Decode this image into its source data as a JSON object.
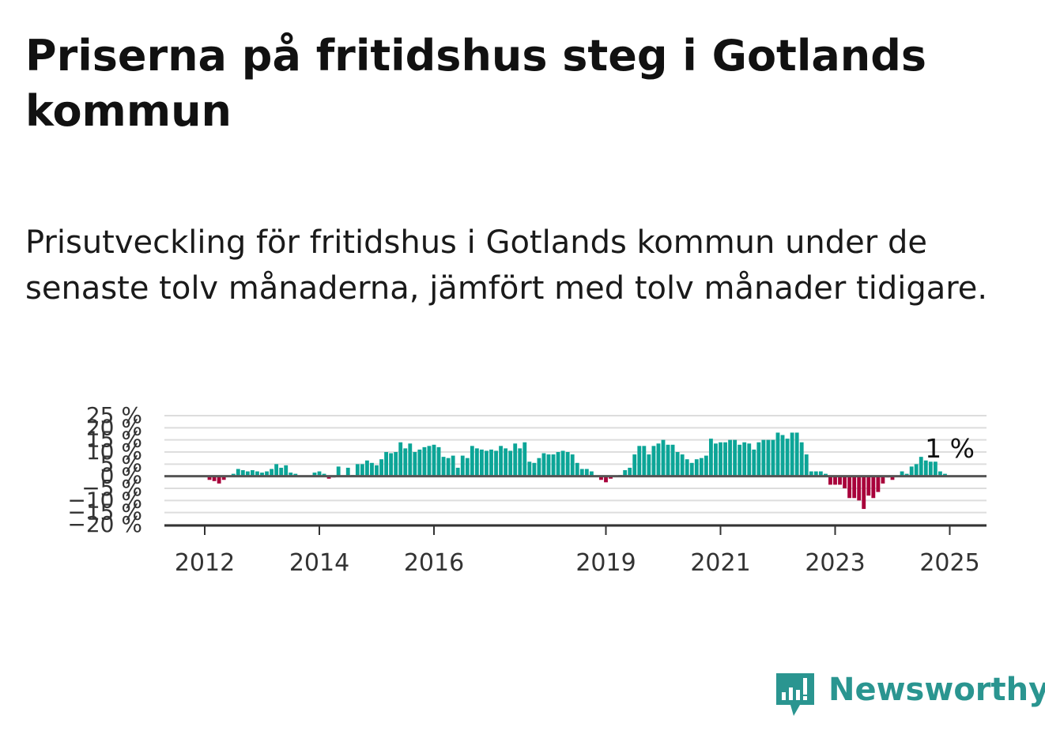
{
  "title": "Priserna på fritidshus steg i Gotlands kommun",
  "subtitle": "Prisutveckling för fritidshus i Gotlands kommun under de senaste tolv månaderna, jämfört med tolv månader tidigare.",
  "brand": {
    "name": "Newsworthy",
    "color": "#2a9590"
  },
  "chart_data": {
    "type": "bar",
    "title": "",
    "xlabel": "",
    "ylabel": "",
    "ylim": [
      -20,
      25
    ],
    "y_ticks": [
      -20,
      -15,
      -10,
      -5,
      0,
      5,
      10,
      15,
      20,
      25
    ],
    "y_tick_labels": [
      "−20 %",
      "−15 %",
      "−10 %",
      "−5 %",
      "0 %",
      "5 %",
      "10 %",
      "15 %",
      "20 %",
      "25 %"
    ],
    "x_ticks": [
      2012,
      2014,
      2016,
      2019,
      2021,
      2023,
      2025
    ],
    "x_tick_labels": [
      "2012",
      "2014",
      "2016",
      "2019",
      "2021",
      "2023",
      "2025"
    ],
    "grid": true,
    "colors": {
      "positive": "#0ca597",
      "negative": "#a8003a",
      "grid": "#dddddd",
      "zero_line": "#555555"
    },
    "annotation": {
      "text": "1 %",
      "x": "2025-01"
    },
    "series": [
      {
        "x_start": "2012-01",
        "frequency": "monthly",
        "values": [
          0,
          -1.5,
          -2,
          -3,
          -1.5,
          0,
          1,
          3,
          2.5,
          2,
          2.5,
          2,
          1.5,
          2,
          3,
          5,
          3.5,
          4.5,
          1.5,
          1,
          0,
          0,
          0,
          1.5,
          2,
          1,
          -1,
          -0.5,
          4,
          0,
          3.5,
          0.5,
          5,
          5,
          6.5,
          5.5,
          4.5,
          7,
          10,
          9.5,
          10,
          14,
          11.5,
          13.5,
          10,
          11,
          12,
          12.5,
          13,
          12,
          8,
          7.5,
          8.5,
          3.5,
          8.5,
          7.5,
          12.5,
          11.5,
          11,
          10.5,
          11,
          10.5,
          12.5,
          11.5,
          10.5,
          13.5,
          11.5,
          14,
          6,
          5.5,
          7.5,
          9.5,
          9,
          9,
          10,
          10.5,
          10,
          9,
          5.5,
          3,
          3,
          2,
          0,
          -1.5,
          -2.5,
          -1,
          0,
          0.5,
          2.5,
          3.5,
          9,
          12.5,
          12.5,
          9,
          12.5,
          13.5,
          15,
          13,
          13,
          10,
          9,
          7,
          5.5,
          7,
          7.5,
          8.5,
          15.5,
          13.5,
          14,
          14,
          15,
          15,
          13,
          14,
          13.5,
          11,
          14,
          15,
          15,
          15,
          18,
          17,
          15.5,
          18,
          18,
          14,
          9,
          2,
          2,
          2,
          1,
          -3.5,
          -3.5,
          -3.5,
          -5,
          -9,
          -9,
          -10,
          -13.5,
          -8,
          -9,
          -6.5,
          -3,
          -0.5,
          -1.5,
          0,
          2,
          1,
          4,
          5,
          8,
          6.5,
          6,
          6,
          2,
          1
        ]
      }
    ]
  }
}
